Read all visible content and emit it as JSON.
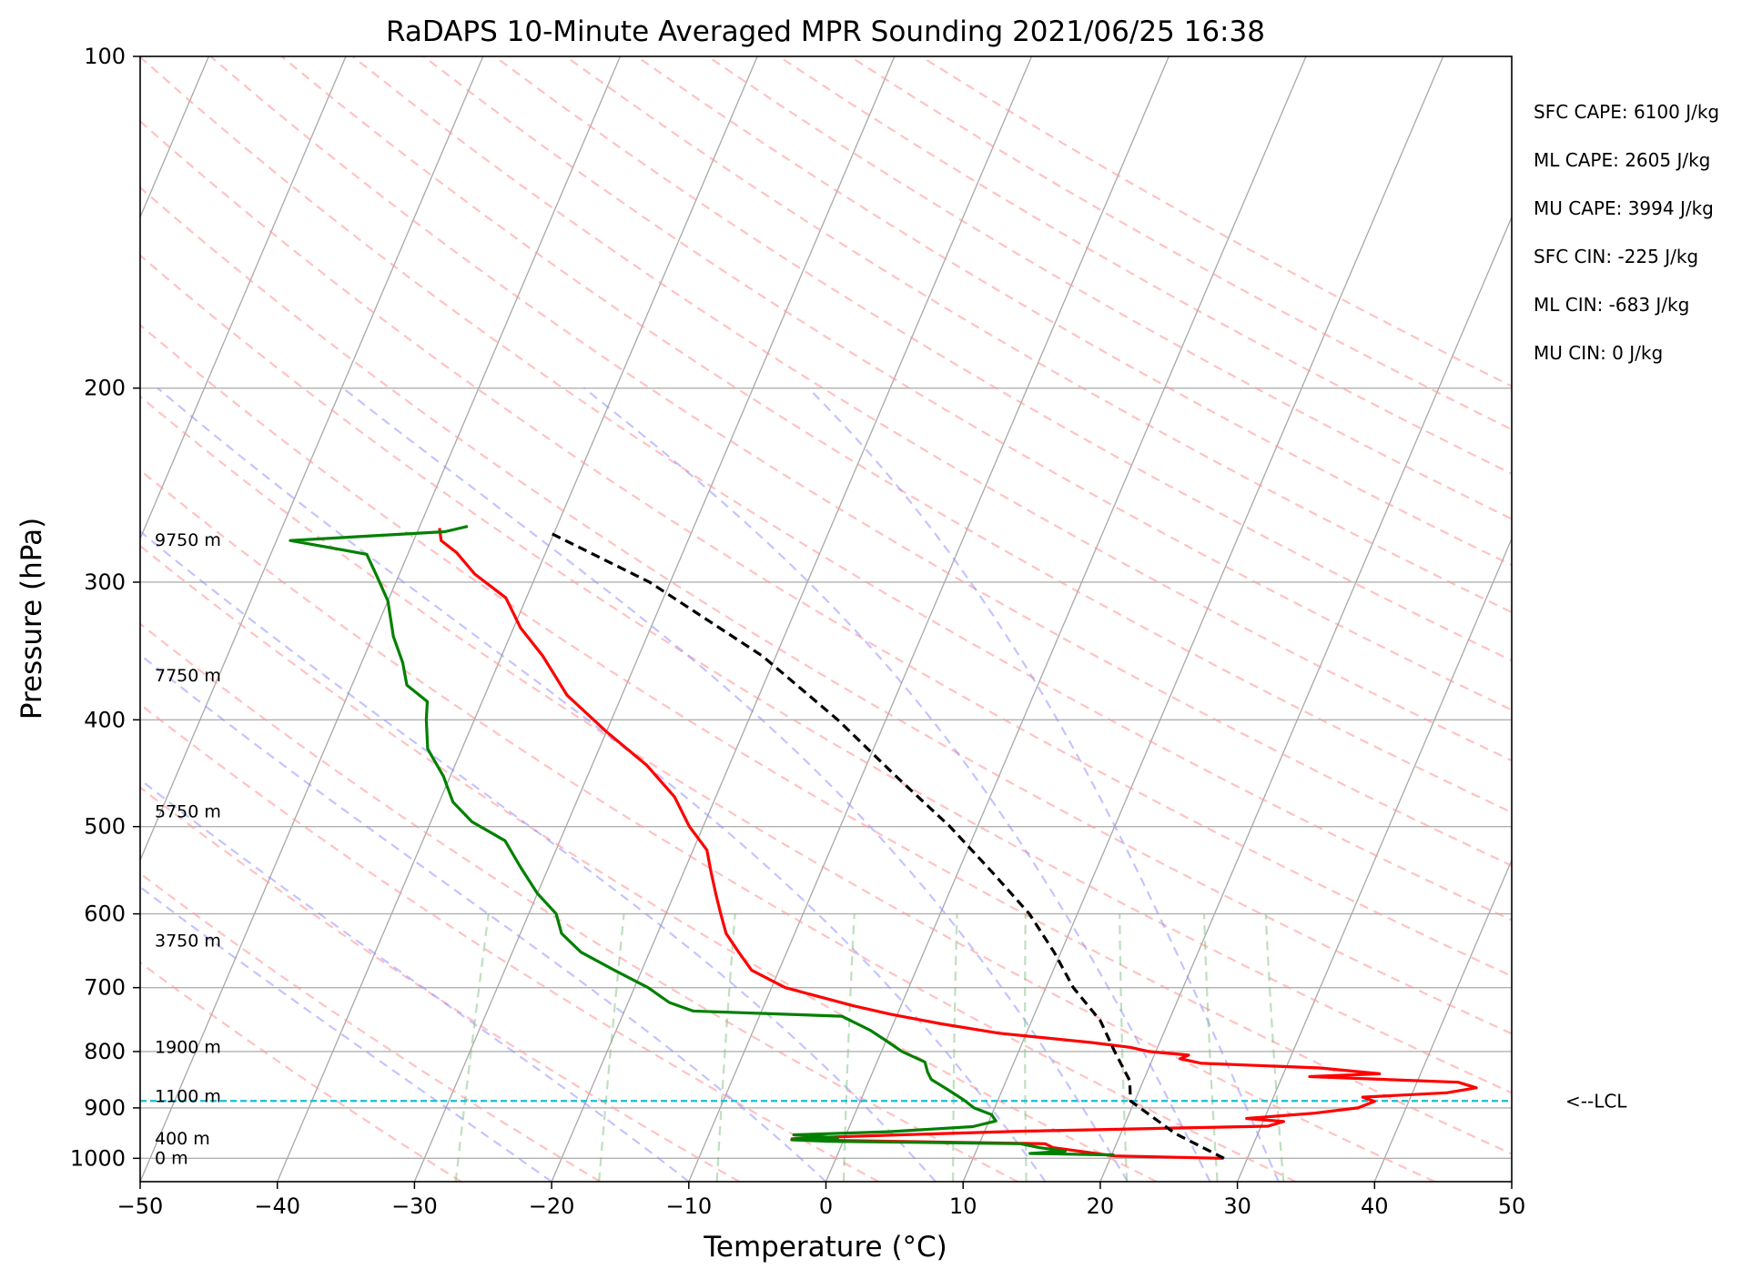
{
  "chart_data": {
    "type": "line",
    "subtype": "skew-T log-P sounding",
    "title": "RaDAPS 10-Minute Averaged MPR Sounding 2021/06/25 16:38",
    "xlabel": "Temperature (°C)",
    "ylabel": "Pressure (hPa)",
    "xlim": [
      -50,
      50
    ],
    "ylim": [
      1050,
      100
    ],
    "y_scale": "log",
    "grid": true,
    "x_ticks": [
      "−50",
      "−40",
      "−30",
      "−20",
      "−10",
      "0",
      "10",
      "20",
      "30",
      "40",
      "50"
    ],
    "x_tick_values": [
      -50,
      -40,
      -30,
      -20,
      -10,
      0,
      10,
      20,
      30,
      40,
      50
    ],
    "y_ticks": [
      "100",
      "200",
      "300",
      "400",
      "500",
      "600",
      "700",
      "800",
      "900",
      "1000"
    ],
    "y_tick_values": [
      100,
      200,
      300,
      400,
      500,
      600,
      700,
      800,
      900,
      1000
    ],
    "height_labels": [
      {
        "text": "9750 m",
        "p": 275
      },
      {
        "text": "7750 m",
        "p": 365
      },
      {
        "text": "5750 m",
        "p": 485
      },
      {
        "text": "3750 m",
        "p": 635
      },
      {
        "text": "1900 m",
        "p": 793
      },
      {
        "text": "1100 m",
        "p": 879
      },
      {
        "text": "400 m",
        "p": 960
      },
      {
        "text": "0 m",
        "p": 1000
      }
    ],
    "stats": [
      "SFC CAPE: 6100 J/kg",
      "ML CAPE: 2605 J/kg",
      "MU CAPE: 3994 J/kg",
      "SFC CIN: -225 J/kg",
      "ML CIN: -683 J/kg",
      "MU CIN: 0 J/kg"
    ],
    "lcl": {
      "label": "<--LCL",
      "p": 887,
      "color": "#17becf"
    },
    "series": [
      {
        "kind": "temperature",
        "color": "#ff0000",
        "points": [
          [
            1000,
            28.2
          ],
          [
            995,
            20.2
          ],
          [
            985,
            17.5
          ],
          [
            978,
            15.5
          ],
          [
            970,
            14.8
          ],
          [
            963,
            -1.2
          ],
          [
            960,
            -3.8
          ],
          [
            957,
            -1.5
          ],
          [
            953,
            3.0
          ],
          [
            945,
            12.5
          ],
          [
            935,
            30.5
          ],
          [
            926,
            31.5
          ],
          [
            920,
            28.7
          ],
          [
            910,
            33.5
          ],
          [
            900,
            36.5
          ],
          [
            888,
            37.5
          ],
          [
            880,
            36.5
          ],
          [
            872,
            42.5
          ],
          [
            863,
            44.5
          ],
          [
            853,
            43.0
          ],
          [
            843,
            32.0
          ],
          [
            838,
            37.0
          ],
          [
            828,
            32.5
          ],
          [
            820,
            23.7
          ],
          [
            812,
            22.0
          ],
          [
            806,
            22.5
          ],
          [
            800,
            19.5
          ],
          [
            793,
            18.0
          ],
          [
            785,
            15.0
          ],
          [
            770,
            8.0
          ],
          [
            755,
            3.5
          ],
          [
            740,
            -0.5
          ],
          [
            727,
            -3.5
          ],
          [
            700,
            -9.0
          ],
          [
            675,
            -12.0
          ],
          [
            650,
            -13.5
          ],
          [
            625,
            -15.0
          ],
          [
            600,
            -16.0
          ],
          [
            575,
            -17.0
          ],
          [
            550,
            -18.0
          ],
          [
            525,
            -19.0
          ],
          [
            500,
            -21.0
          ],
          [
            470,
            -23.0
          ],
          [
            440,
            -26.0
          ],
          [
            410,
            -30.0
          ],
          [
            380,
            -34.0
          ],
          [
            350,
            -37.0
          ],
          [
            330,
            -39.5
          ],
          [
            310,
            -41.5
          ],
          [
            295,
            -44.5
          ],
          [
            282,
            -46.5
          ],
          [
            275,
            -48.0
          ],
          [
            268,
            -48.5
          ]
        ]
      },
      {
        "kind": "dewpoint",
        "color": "#008000",
        "points": [
          [
            993,
            20.2
          ],
          [
            990,
            14.0
          ],
          [
            985,
            16.5
          ],
          [
            978,
            14.5
          ],
          [
            970,
            13.0
          ],
          [
            965,
            -1.0
          ],
          [
            962,
            -3.8
          ],
          [
            958,
            -0.5
          ],
          [
            952,
            -3.8
          ],
          [
            946,
            3.0
          ],
          [
            936,
            9.0
          ],
          [
            925,
            10.5
          ],
          [
            913,
            10.0
          ],
          [
            900,
            8.5
          ],
          [
            885,
            7.5
          ],
          [
            866,
            6.0
          ],
          [
            848,
            4.5
          ],
          [
            835,
            4.0
          ],
          [
            818,
            3.5
          ],
          [
            800,
            1.5
          ],
          [
            782,
            0.0
          ],
          [
            765,
            -1.5
          ],
          [
            743,
            -4.0
          ],
          [
            735,
            -15.0
          ],
          [
            722,
            -17.0
          ],
          [
            700,
            -19.0
          ],
          [
            675,
            -22.0
          ],
          [
            650,
            -25.0
          ],
          [
            625,
            -27.0
          ],
          [
            600,
            -28.0
          ],
          [
            575,
            -30.0
          ],
          [
            545,
            -32.0
          ],
          [
            515,
            -34.0
          ],
          [
            495,
            -37.0
          ],
          [
            475,
            -39.0
          ],
          [
            450,
            -40.5
          ],
          [
            425,
            -42.5
          ],
          [
            400,
            -43.5
          ],
          [
            385,
            -44.0
          ],
          [
            372,
            -46.0
          ],
          [
            355,
            -47.0
          ],
          [
            336,
            -48.5
          ],
          [
            312,
            -50.0
          ],
          [
            297,
            -51.5
          ],
          [
            283,
            -53.0
          ],
          [
            275,
            -59.0
          ],
          [
            270,
            -48.0
          ],
          [
            267,
            -46.5
          ]
        ]
      },
      {
        "kind": "parcel",
        "color": "#000000",
        "dashed": true,
        "points": [
          [
            1000,
            28.3
          ],
          [
            950,
            24.0
          ],
          [
            887,
            19.7
          ],
          [
            850,
            19.0
          ],
          [
            800,
            17.0
          ],
          [
            750,
            15.0
          ],
          [
            700,
            12.0
          ],
          [
            650,
            9.5
          ],
          [
            600,
            6.5
          ],
          [
            550,
            2.5
          ],
          [
            500,
            -2.0
          ],
          [
            450,
            -7.5
          ],
          [
            400,
            -13.5
          ],
          [
            350,
            -21.0
          ],
          [
            300,
            -31.5
          ],
          [
            270,
            -40.5
          ]
        ]
      }
    ]
  }
}
